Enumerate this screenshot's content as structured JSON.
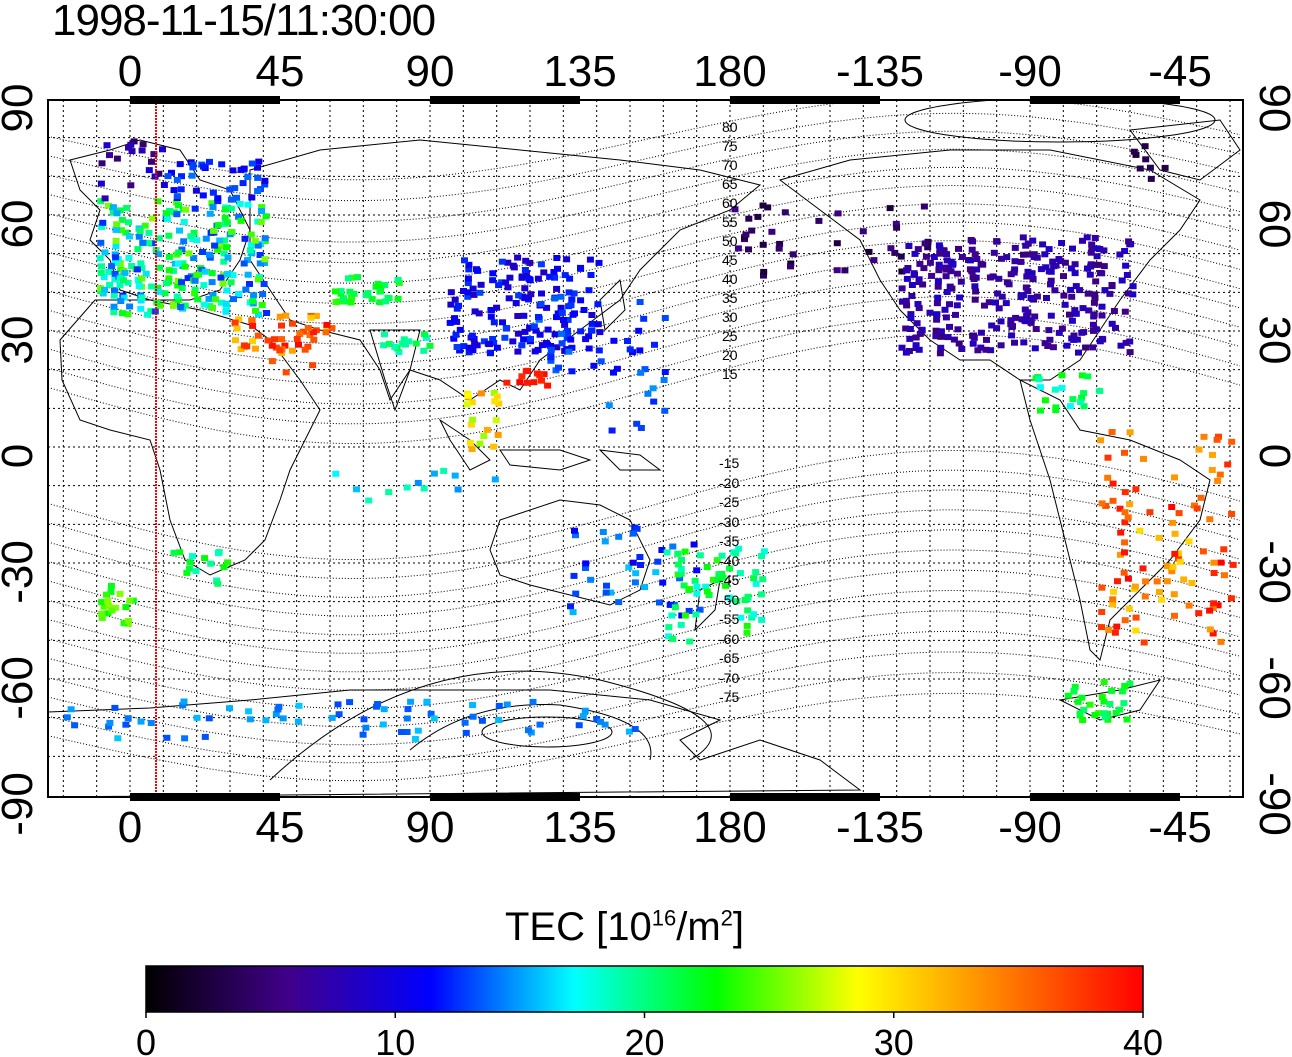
{
  "title": "1998-11-15/11:30:00",
  "longitude_ticks": [
    "0",
    "45",
    "90",
    "135",
    "180",
    "-135",
    "-90",
    "-45"
  ],
  "latitude_ticks": [
    "90",
    "60",
    "30",
    "0",
    "-30",
    "-60",
    "-90"
  ],
  "contour_labels_north": [
    "80",
    "75",
    "70",
    "65",
    "60",
    "55",
    "50",
    "45",
    "40",
    "35",
    "30",
    "25",
    "20",
    "15"
  ],
  "contour_labels_south": [
    "-15",
    "-20",
    "-25",
    "-30",
    "-35",
    "-40",
    "-45",
    "-50",
    "-55",
    "-60",
    "-65",
    "-70",
    "-75"
  ],
  "colorbar": {
    "label_prefix": "TEC  [10",
    "label_exp": "16",
    "label_mid": "/m",
    "label_exp2": "2",
    "label_suffix": "]",
    "ticks": [
      "0",
      "10",
      "20",
      "30",
      "40"
    ],
    "min": 0,
    "max": 40,
    "colors": [
      "#000000",
      "#40008a",
      "#0000ff",
      "#00ffff",
      "#00ff00",
      "#ffff00",
      "#ff8000",
      "#ff0000"
    ]
  },
  "colors": {
    "terminator_line": "#ff0000",
    "frame": "#000000"
  }
}
